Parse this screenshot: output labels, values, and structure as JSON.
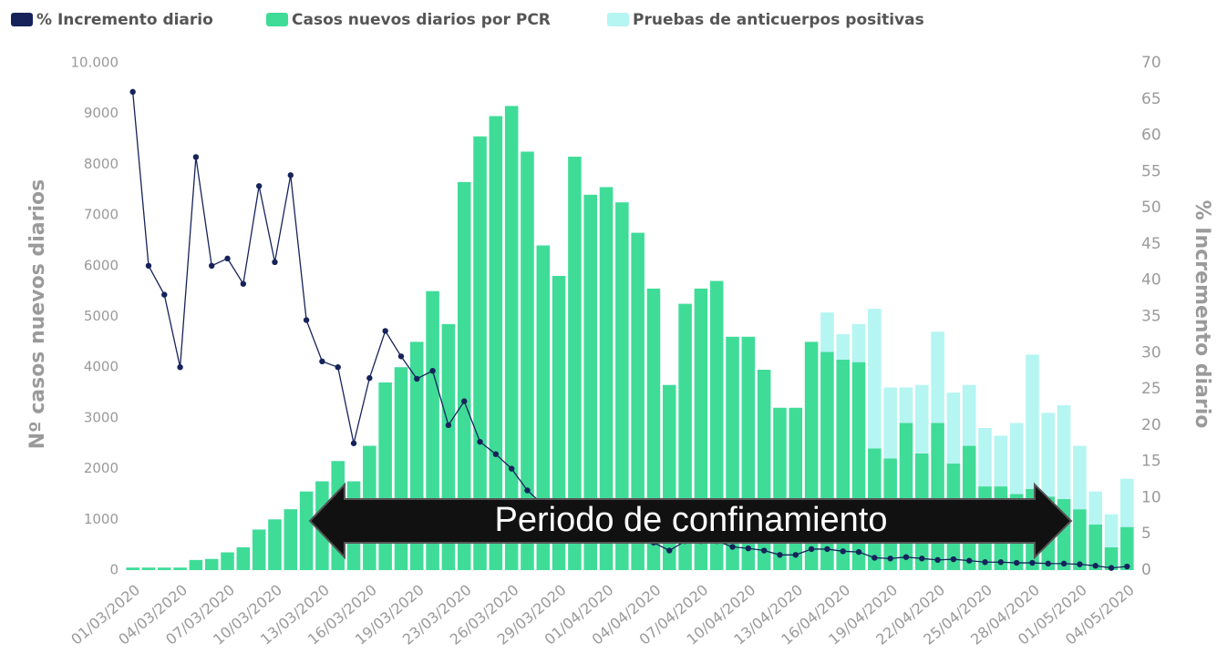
{
  "chart_data": {
    "type": "bar",
    "categories": [
      "01/03/2020",
      null,
      null,
      "04/03/2020",
      null,
      null,
      "07/03/2020",
      null,
      null,
      "10/03/2020",
      null,
      null,
      "13/03/2020",
      null,
      null,
      "16/03/2020",
      null,
      null,
      "19/03/2020",
      null,
      null,
      "23/03/2020",
      null,
      null,
      "26/03/2020",
      null,
      null,
      "29/03/2020",
      null,
      null,
      "01/04/2020",
      null,
      null,
      "04/04/2020",
      null,
      null,
      "07/04/2020",
      null,
      null,
      "10/04/2020",
      null,
      null,
      "13/04/2020",
      null,
      null,
      "16/04/2020",
      null,
      null,
      "19/04/2020",
      null,
      null,
      "22/04/2020",
      null,
      null,
      "25/04/2020",
      null,
      null,
      "28/04/2020",
      null,
      null,
      "01/05/2020",
      null,
      null,
      "04/05/2020"
    ],
    "series": [
      {
        "name": "% Incremento diario",
        "type": "line",
        "axis": "y2",
        "color": "#16235a",
        "values": [
          66,
          42,
          38,
          28,
          57,
          42,
          43,
          39.5,
          53,
          42.5,
          54.5,
          34.5,
          28.8,
          28,
          17.5,
          26.5,
          33,
          29.5,
          26.4,
          27.5,
          20,
          23.3,
          17.7,
          16,
          14,
          11,
          9,
          8,
          7.5,
          6.5,
          6,
          5,
          4.5,
          3.8,
          2.7,
          4,
          4,
          4,
          3.2,
          3,
          2.7,
          2.1,
          2.1,
          2.9,
          2.9,
          2.6,
          2.5,
          1.7,
          1.6,
          1.8,
          1.6,
          1.4,
          1.5,
          1.3,
          1.1,
          1.1,
          1,
          1,
          0.9,
          0.9,
          0.8,
          0.6,
          0.3,
          0.5
        ]
      },
      {
        "name": "Casos nuevos diarios por PCR",
        "type": "bar",
        "color": "#3fdc98",
        "values": [
          50,
          50,
          50,
          50,
          200,
          220,
          350,
          450,
          800,
          1000,
          1200,
          1550,
          1750,
          2150,
          1750,
          2450,
          3700,
          4000,
          4500,
          5500,
          4850,
          7650,
          8550,
          8950,
          9150,
          8250,
          6400,
          5800,
          8150,
          7400,
          7550,
          7250,
          6650,
          5550,
          3650,
          5250,
          5550,
          5700,
          4600,
          4600,
          3950,
          3200,
          3200,
          4500,
          4300,
          4150,
          4100,
          2400,
          2200,
          2900,
          2300,
          2900,
          2100,
          2450,
          1650,
          1650,
          1500,
          1600,
          1450,
          1400,
          1200,
          900,
          450,
          850
        ]
      },
      {
        "name": "Pruebas de anticuerpos positivas",
        "type": "bar",
        "color": "#b5f5f2",
        "values": [
          0,
          0,
          0,
          0,
          0,
          0,
          0,
          0,
          0,
          0,
          0,
          0,
          0,
          0,
          0,
          0,
          0,
          0,
          0,
          0,
          0,
          0,
          0,
          0,
          0,
          0,
          0,
          0,
          0,
          0,
          0,
          0,
          0,
          0,
          0,
          0,
          0,
          0,
          0,
          0,
          0,
          0,
          0,
          0,
          780,
          500,
          750,
          2750,
          1400,
          700,
          1350,
          1800,
          1400,
          1200,
          1150,
          1000,
          1400,
          2650,
          1650,
          1850,
          1250,
          650,
          650,
          950
        ]
      }
    ],
    "ylabel": "Nº casos nuevos diarios",
    "y2label": "% Incremento diario",
    "ylim": [
      0,
      10000
    ],
    "yticks": [
      0,
      1000,
      2000,
      3000,
      4000,
      5000,
      6000,
      7000,
      8000,
      9000,
      {
        "value": 10000,
        "label": "10.000"
      }
    ],
    "y2lim": [
      0,
      70
    ],
    "y2ticks": [
      0,
      5,
      10,
      15,
      20,
      25,
      30,
      35,
      40,
      45,
      50,
      55,
      60,
      65,
      70
    ],
    "annotation": "Periodo de confinamiento",
    "legend": "top"
  }
}
